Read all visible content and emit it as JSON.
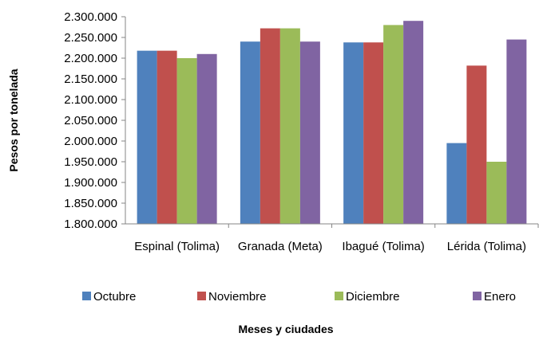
{
  "chart_data": {
    "type": "bar",
    "categories": [
      "Espinal (Tolima)",
      "Granada (Meta)",
      "Ibagué (Tolima)",
      "Lérida (Tolima)"
    ],
    "series": [
      {
        "name": "Octubre",
        "color": "#4F81BD",
        "values": [
          2218000,
          2240000,
          2238000,
          1995000
        ]
      },
      {
        "name": "Noviembre",
        "color": "#C0504D",
        "values": [
          2218000,
          2272000,
          2238000,
          2182000
        ]
      },
      {
        "name": "Diciembre",
        "color": "#9BBB59",
        "values": [
          2200000,
          2272000,
          2280000,
          1950000
        ]
      },
      {
        "name": "Enero",
        "color": "#8064A2",
        "values": [
          2210000,
          2240000,
          2290000,
          2245000
        ]
      }
    ],
    "ylim": [
      1800000,
      2300000
    ],
    "yticks": [
      1800000,
      1850000,
      1900000,
      1950000,
      2000000,
      2050000,
      2100000,
      2150000,
      2200000,
      2250000,
      2300000
    ],
    "ytick_labels": [
      "1.800.000",
      "1.850.000",
      "1.900.000",
      "1.950.000",
      "2.000.000",
      "2.050.000",
      "2.100.000",
      "2.150.000",
      "2.200.000",
      "2.250.000",
      "2.300.000"
    ],
    "ylabel": "Pesos por tonelada",
    "xlabel": "Meses y ciudades",
    "grid": false,
    "legend_position": "bottom"
  }
}
